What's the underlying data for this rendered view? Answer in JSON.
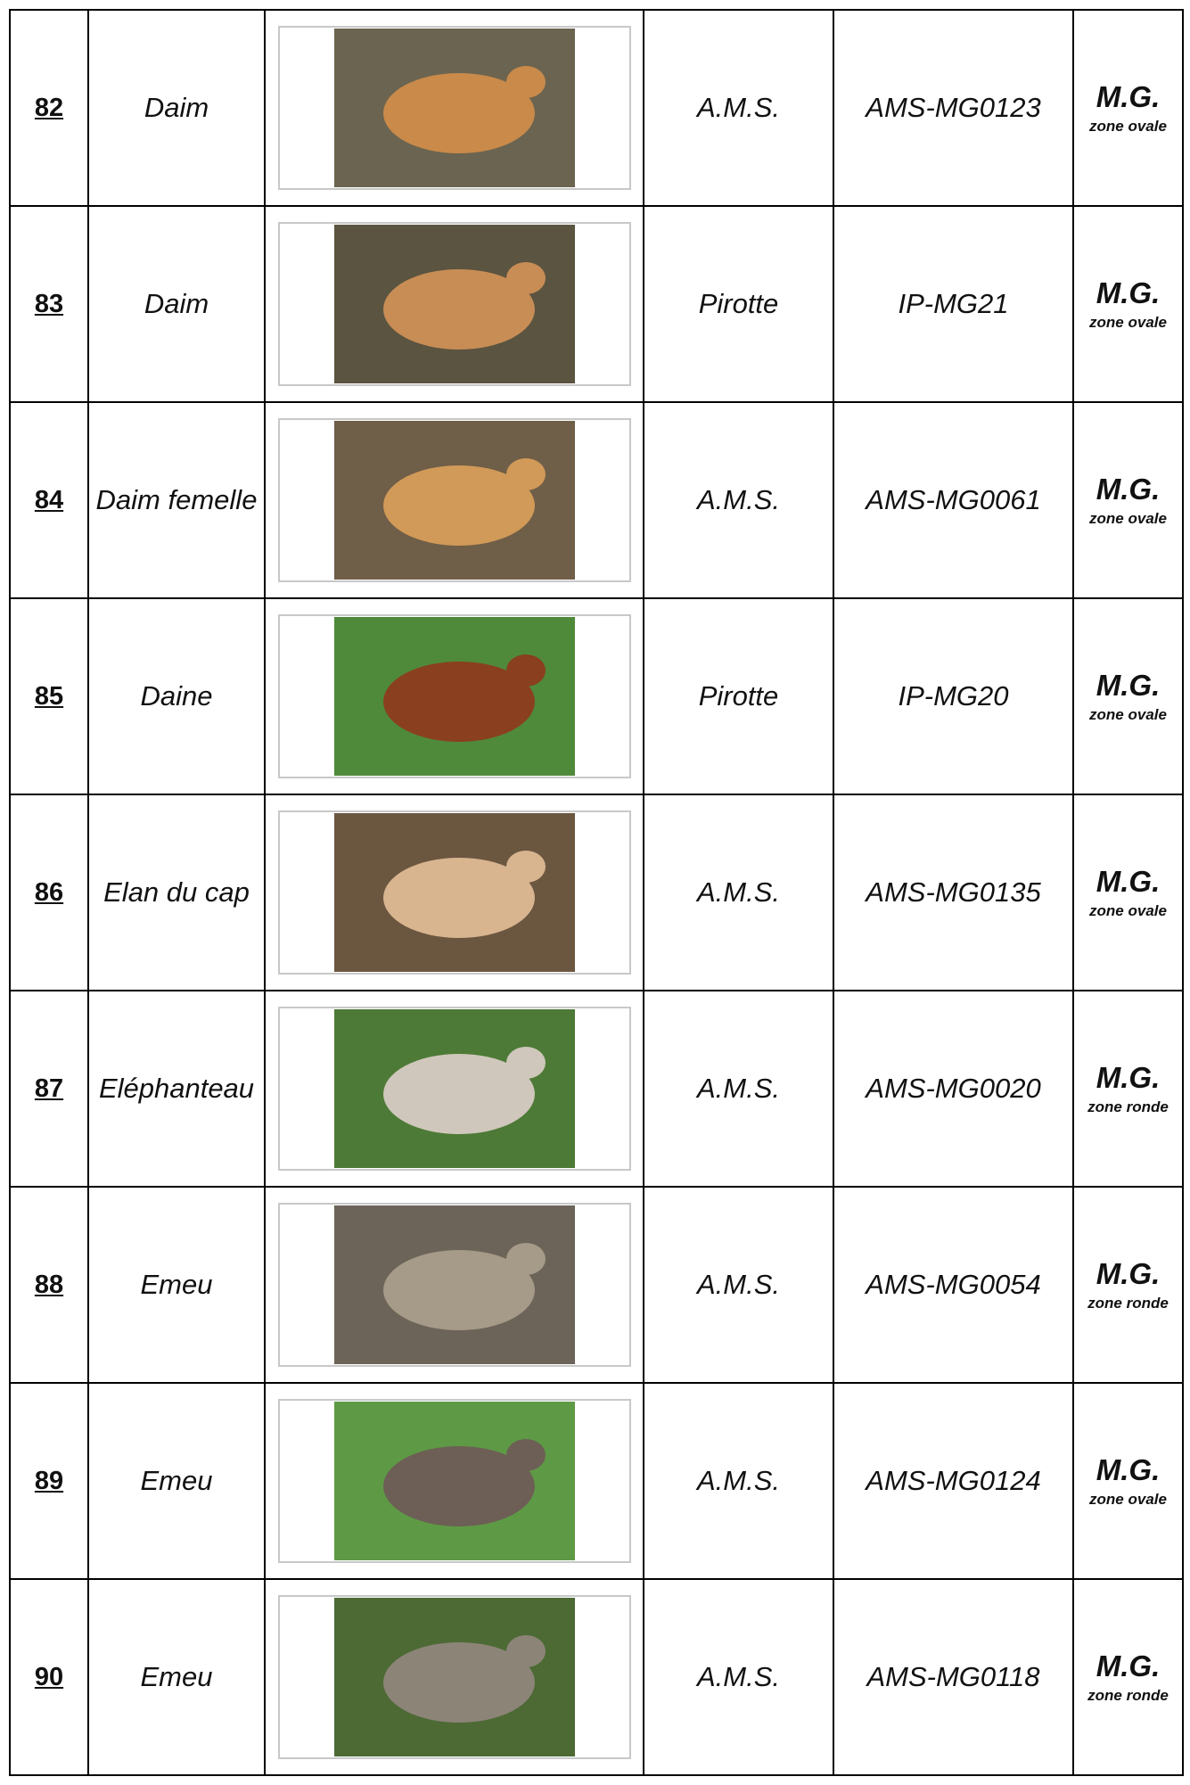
{
  "rows": [
    {
      "number": "82",
      "name": "Daim",
      "maker": "A.M.S.",
      "ref": "AMS-MG0123",
      "category": "M.G.",
      "zone": "zone ovale"
    },
    {
      "number": "83",
      "name": "Daim",
      "maker": "Pirotte",
      "ref": "IP-MG21",
      "category": "M.G.",
      "zone": "zone ovale"
    },
    {
      "number": "84",
      "name": "Daim femelle",
      "maker": "A.M.S.",
      "ref": "AMS-MG0061",
      "category": "M.G.",
      "zone": "zone ovale"
    },
    {
      "number": "85",
      "name": "Daine",
      "maker": "Pirotte",
      "ref": "IP-MG20",
      "category": "M.G.",
      "zone": "zone ovale"
    },
    {
      "number": "86",
      "name": "Elan du cap",
      "maker": "A.M.S.",
      "ref": "AMS-MG0135",
      "category": "M.G.",
      "zone": "zone ovale"
    },
    {
      "number": "87",
      "name": "Eléphanteau",
      "maker": "A.M.S.",
      "ref": "AMS-MG0020",
      "category": "M.G.",
      "zone": "zone ronde"
    },
    {
      "number": "88",
      "name": "Emeu",
      "maker": "A.M.S.",
      "ref": "AMS-MG0054",
      "category": "M.G.",
      "zone": "zone ronde"
    },
    {
      "number": "89",
      "name": "Emeu",
      "maker": "A.M.S.",
      "ref": "AMS-MG0124",
      "category": "M.G.",
      "zone": "zone ovale"
    },
    {
      "number": "90",
      "name": "Emeu",
      "maker": "A.M.S.",
      "ref": "AMS-MG0118",
      "category": "M.G.",
      "zone": "zone ronde"
    }
  ]
}
